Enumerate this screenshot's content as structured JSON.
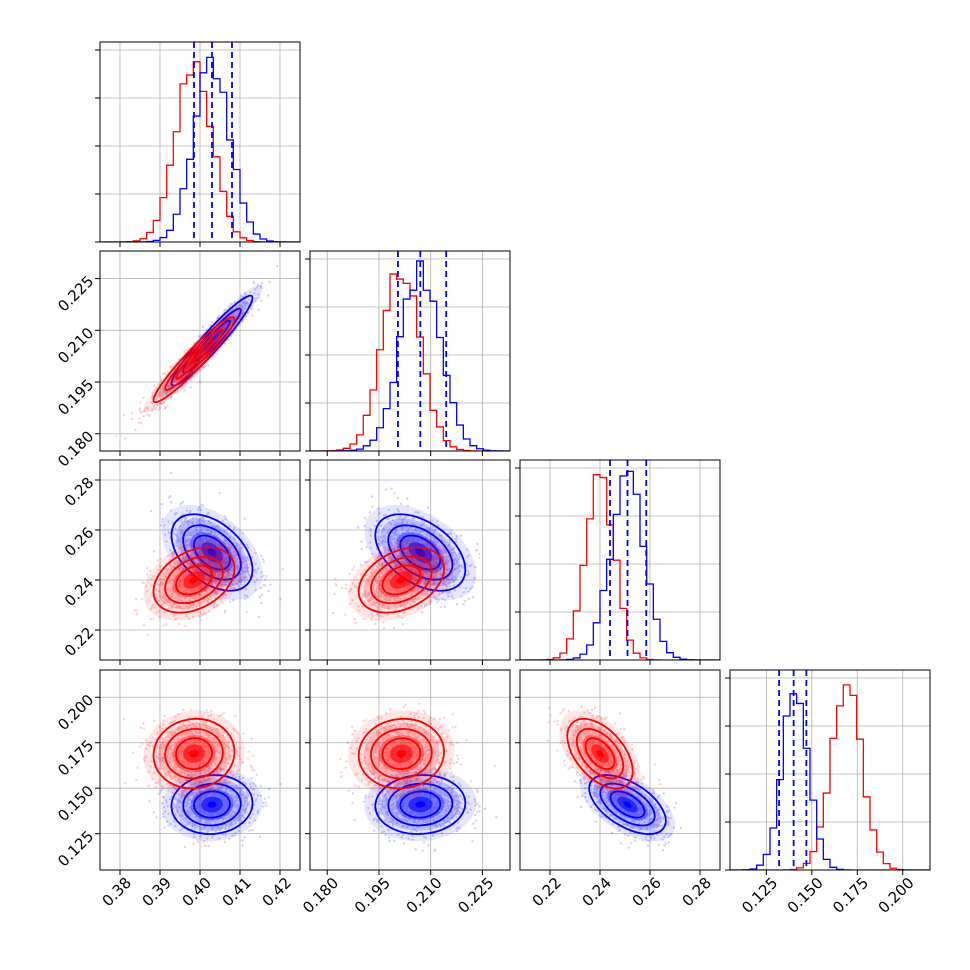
{
  "chart_data": {
    "type": "corner",
    "grid": true,
    "parameters": [
      {
        "ticks": [
          "0.38",
          "0.39",
          "0.40",
          "0.41",
          "0.42"
        ],
        "range": [
          0.375,
          0.425
        ]
      },
      {
        "ticks": [
          "0.180",
          "0.195",
          "0.210",
          "0.225"
        ],
        "range": [
          0.175,
          0.233
        ]
      },
      {
        "ticks": [
          "0.22",
          "0.24",
          "0.26",
          "0.28"
        ],
        "range": [
          0.208,
          0.288
        ]
      },
      {
        "ticks": [
          "0.125",
          "0.150",
          "0.175",
          "0.200"
        ],
        "range": [
          0.105,
          0.215
        ]
      }
    ],
    "series": [
      {
        "color": "#0000ff",
        "means": [
          0.403,
          0.207,
          0.251,
          0.141
        ],
        "sds": [
          0.0045,
          0.0058,
          0.0068,
          0.0072
        ],
        "quantiles": [
          [
            0.3985,
            0.403,
            0.408
          ],
          [
            0.2005,
            0.207,
            0.2145
          ],
          [
            0.244,
            0.251,
            0.2585
          ],
          [
            0.132,
            0.14,
            0.147
          ]
        ]
      },
      {
        "color": "#ff0000",
        "means": [
          0.3985,
          0.2015,
          0.24,
          0.169
        ],
        "sds": [
          0.0045,
          0.0055,
          0.0058,
          0.0085
        ]
      }
    ],
    "correlations": {
      "0-1": {
        "#0000ff": 0.95,
        "#ff0000": 0.95
      },
      "0-2": {
        "#0000ff": -0.45,
        "#ff0000": 0.35
      },
      "1-2": {
        "#0000ff": -0.45,
        "#ff0000": 0.35
      },
      "0-3": {
        "#0000ff": 0.05,
        "#ff0000": 0.05
      },
      "1-3": {
        "#0000ff": 0.05,
        "#ff0000": 0.05
      },
      "2-3": {
        "#0000ff": -0.55,
        "#ff0000": -0.5
      }
    }
  }
}
